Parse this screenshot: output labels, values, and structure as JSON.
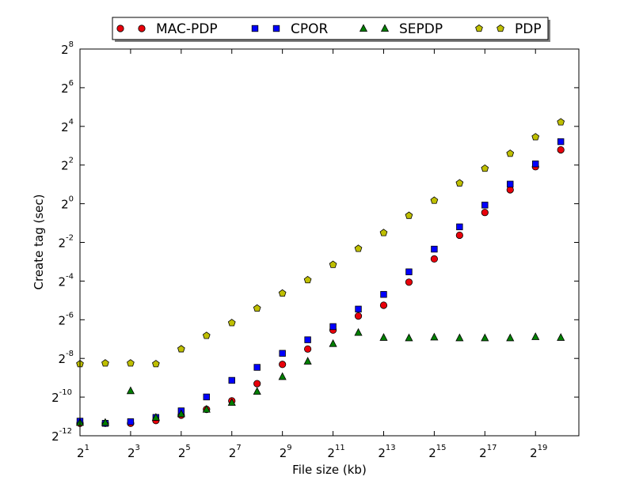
{
  "chart_data": {
    "type": "scatter",
    "xlabel": "File size (kb)",
    "ylabel": "Create tag (sec)",
    "xscale": "log2",
    "yscale": "log2",
    "xlim": [
      2,
      1720000
    ],
    "ylim": [
      0.000244140625,
      256
    ],
    "grid": false,
    "legend_position": "top",
    "x_ticks": [
      {
        "base": "2",
        "exp": "1"
      },
      {
        "base": "2",
        "exp": "3"
      },
      {
        "base": "2",
        "exp": "5"
      },
      {
        "base": "2",
        "exp": "7"
      },
      {
        "base": "2",
        "exp": "9"
      },
      {
        "base": "2",
        "exp": "11"
      },
      {
        "base": "2",
        "exp": "13"
      },
      {
        "base": "2",
        "exp": "15"
      },
      {
        "base": "2",
        "exp": "17"
      },
      {
        "base": "2",
        "exp": "19"
      }
    ],
    "y_ticks": [
      {
        "base": "2",
        "exp": "-12"
      },
      {
        "base": "2",
        "exp": "-10"
      },
      {
        "base": "2",
        "exp": "-8"
      },
      {
        "base": "2",
        "exp": "-6"
      },
      {
        "base": "2",
        "exp": "-4"
      },
      {
        "base": "2",
        "exp": "-2"
      },
      {
        "base": "2",
        "exp": "0"
      },
      {
        "base": "2",
        "exp": "2"
      },
      {
        "base": "2",
        "exp": "4"
      },
      {
        "base": "2",
        "exp": "6"
      },
      {
        "base": "2",
        "exp": "8"
      }
    ],
    "x": [
      2,
      4,
      8,
      16,
      32,
      64,
      128,
      256,
      512,
      1024,
      2048,
      4096,
      8192,
      16384,
      32768,
      65536,
      131072,
      262144,
      524288,
      1048576
    ],
    "series": [
      {
        "name": "MAC-PDP",
        "marker": "circle",
        "color": "#e8000b",
        "values": [
          0.000381,
          0.000381,
          0.000381,
          0.000421,
          0.00051,
          0.000629,
          0.000854,
          0.001582,
          0.003152,
          0.005468,
          0.010779,
          0.017857,
          0.026278,
          0.060059,
          0.13821,
          0.323088,
          0.729785,
          1.647955,
          3.766005,
          6.89673
        ]
      },
      {
        "name": "CPOR",
        "marker": "square",
        "color": "#0000ff",
        "values": [
          0.000412,
          0.000381,
          0.000404,
          0.000471,
          0.000596,
          0.000981,
          0.001778,
          0.002835,
          0.004688,
          0.007616,
          0.012225,
          0.022881,
          0.038721,
          0.087009,
          0.196306,
          0.436208,
          0.952063,
          2.01938,
          4.16992,
          9.25731
        ]
      },
      {
        "name": "SEPDP",
        "marker": "triangle",
        "color": "#007f00",
        "values": [
          0.000392,
          0.000392,
          0.001221,
          0.000471,
          0.000535,
          0.000629,
          0.000802,
          0.001193,
          0.002027,
          0.003526,
          0.006624,
          0.00987,
          0.008247,
          0.008134,
          0.008361,
          0.008134,
          0.008134,
          0.008134,
          0.008468,
          0.008247
        ]
      },
      {
        "name": "PDP",
        "marker": "pentagon",
        "color": "#bfbf00",
        "values": [
          0.003205,
          0.003288,
          0.003288,
          0.003205,
          0.005468,
          0.00883,
          0.013963,
          0.023522,
          0.040301,
          0.065,
          0.112643,
          0.199936,
          0.352365,
          0.65364,
          1.12253,
          2.09137,
          3.5369,
          6.04064,
          10.9157,
          18.6347
        ]
      }
    ]
  }
}
